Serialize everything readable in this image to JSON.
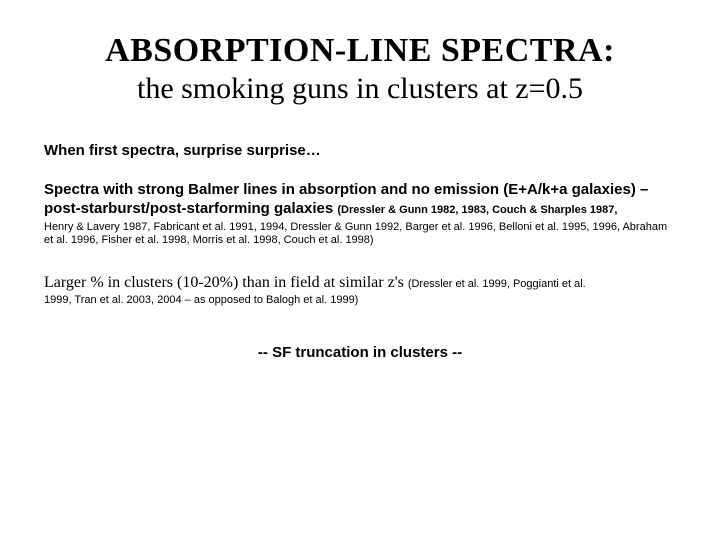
{
  "title": {
    "main": "ABSORPTION-LINE SPECTRA:",
    "sub": "the smoking guns in clusters at z=0.5"
  },
  "intro": "When first spectra, surprise surprise…",
  "balmer": {
    "text": "Spectra with strong Balmer lines in absorption and no emission (E+A/k+a galaxies) – post-starburst/post-starforming galaxies  ",
    "cite_lead": "(Dressler & Gunn 1982, 1983, Couch & Sharples 1987,",
    "cite_rest": " Henry & Lavery 1987, Fabricant et al. 1991, 1994,  Dressler & Gunn 1992, Barger et al. 1996, Belloni et al. 1995, 1996, Abraham et al. 1996, Fisher et al. 1998, Morris et al. 1998, Couch et al. 1998)"
  },
  "larger": {
    "text": "Larger % in clusters (10-20%)  than in field at similar z's ",
    "cite_lead": "(Dressler et al. 1999, Poggianti et al.",
    "cite_rest": "1999, Tran et al. 2003, 2004 – as opposed to Balogh et al. 1999)"
  },
  "punch": "-- SF truncation in clusters --",
  "colors": {
    "text": "#000000",
    "background": "#ffffff"
  }
}
